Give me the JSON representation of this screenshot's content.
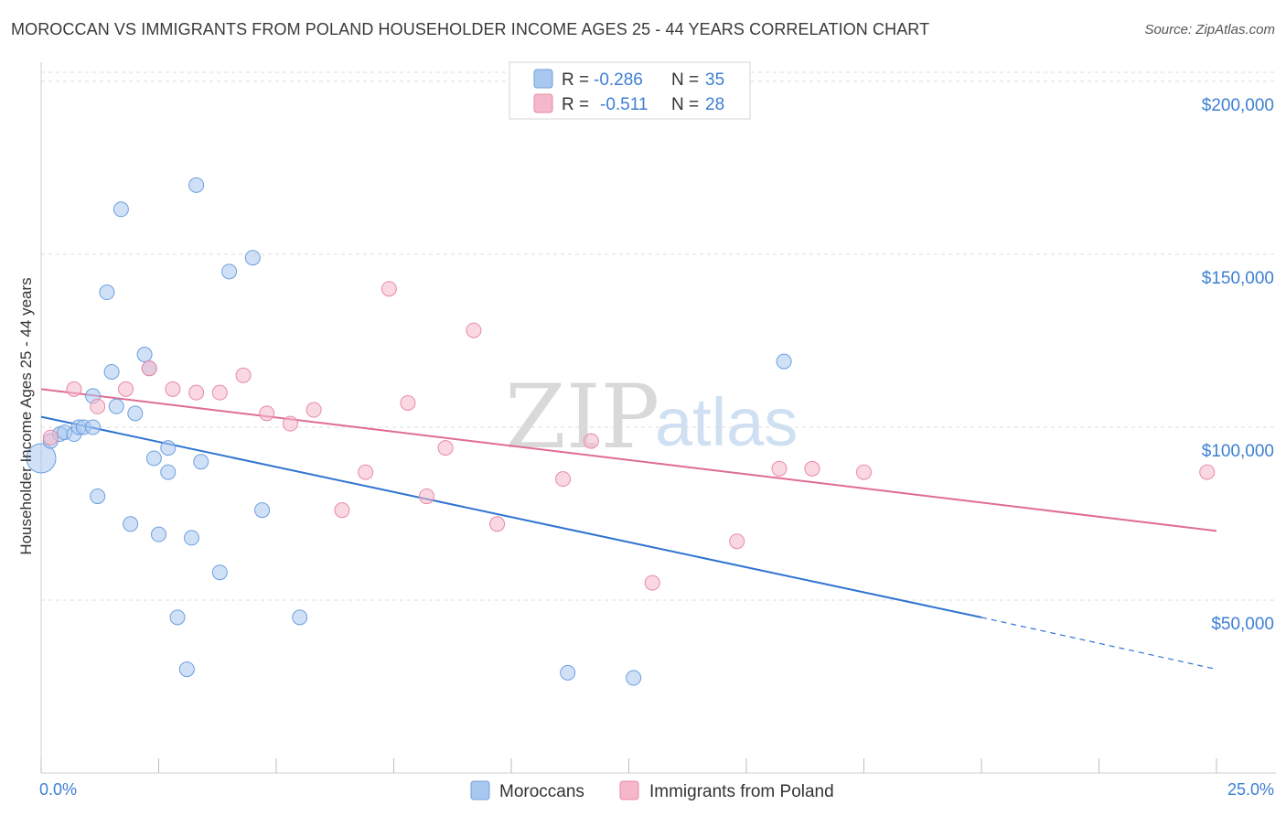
{
  "header": {
    "title": "MOROCCAN VS IMMIGRANTS FROM POLAND HOUSEHOLDER INCOME AGES 25 - 44 YEARS CORRELATION CHART",
    "source": "Source: ZipAtlas.com"
  },
  "watermark": {
    "zip": "ZIP",
    "atlas": "atlas"
  },
  "legend_top": {
    "rows": [
      {
        "r_label": "R =",
        "r_value": "-0.286",
        "n_label": "N =",
        "n_value": "35",
        "color": "#a9c8f0"
      },
      {
        "r_label": "R =",
        "r_value": "-0.511",
        "n_label": "N =",
        "n_value": "28",
        "color": "#f5b8cb"
      }
    ]
  },
  "legend_bottom": {
    "items": [
      {
        "label": "Moroccans",
        "color": "#a9c8f0"
      },
      {
        "label": "Immigrants from Poland",
        "color": "#f5b8cb"
      }
    ]
  },
  "chart_data": {
    "type": "scatter",
    "title": "MOROCCAN VS IMMIGRANTS FROM POLAND HOUSEHOLDER INCOME AGES 25 - 44 YEARS CORRELATION CHART",
    "xlabel": "",
    "ylabel": "Householder Income Ages 25 - 44 years",
    "xlim": [
      0,
      25
    ],
    "ylim": [
      0,
      205000
    ],
    "x_tick_labels": [
      "0.0%",
      "25.0%"
    ],
    "y_ticks": [
      50000,
      100000,
      150000,
      200000
    ],
    "y_tick_labels": [
      "$50,000",
      "$100,000",
      "$150,000",
      "$200,000"
    ],
    "grid": true,
    "series": [
      {
        "name": "Moroccans",
        "color": "#a9c8f0",
        "stroke": "#6d9fdf",
        "line_color": "#2f74d0",
        "trend": {
          "x_start": 0,
          "y_start": 103000,
          "x_solid_end": 20,
          "y_solid_end": 45000,
          "x_end": 25,
          "y_end": 30000
        },
        "points": [
          [
            0.0,
            91000
          ],
          [
            0.2,
            96000
          ],
          [
            0.4,
            98000
          ],
          [
            0.5,
            98500
          ],
          [
            0.7,
            98000
          ],
          [
            0.8,
            100000
          ],
          [
            0.9,
            100000
          ],
          [
            1.1,
            100000
          ],
          [
            1.1,
            109000
          ],
          [
            1.2,
            80000
          ],
          [
            1.4,
            139000
          ],
          [
            1.5,
            116000
          ],
          [
            1.6,
            106000
          ],
          [
            1.7,
            163000
          ],
          [
            1.9,
            72000
          ],
          [
            2.0,
            104000
          ],
          [
            2.2,
            121000
          ],
          [
            2.3,
            117000
          ],
          [
            2.4,
            91000
          ],
          [
            2.5,
            69000
          ],
          [
            2.7,
            94000
          ],
          [
            2.7,
            87000
          ],
          [
            2.9,
            45000
          ],
          [
            3.1,
            30000
          ],
          [
            3.2,
            68000
          ],
          [
            3.3,
            170000
          ],
          [
            3.4,
            90000
          ],
          [
            3.8,
            58000
          ],
          [
            4.0,
            145000
          ],
          [
            4.5,
            149000
          ],
          [
            4.7,
            76000
          ],
          [
            5.5,
            45000
          ],
          [
            11.2,
            29000
          ],
          [
            12.6,
            27500
          ],
          [
            15.8,
            119000
          ]
        ]
      },
      {
        "name": "Immigrants from Poland",
        "color": "#f5b8cb",
        "stroke": "#e88aa7",
        "line_color": "#e06c93",
        "trend": {
          "x_start": 0,
          "y_start": 111000,
          "x_solid_end": 25,
          "y_solid_end": 70000,
          "x_end": 25,
          "y_end": 70000
        },
        "points": [
          [
            0.2,
            97000
          ],
          [
            0.7,
            111000
          ],
          [
            1.2,
            106000
          ],
          [
            1.8,
            111000
          ],
          [
            2.3,
            117000
          ],
          [
            2.8,
            111000
          ],
          [
            3.3,
            110000
          ],
          [
            3.8,
            110000
          ],
          [
            4.3,
            115000
          ],
          [
            4.8,
            104000
          ],
          [
            5.3,
            101000
          ],
          [
            5.8,
            105000
          ],
          [
            6.4,
            76000
          ],
          [
            6.9,
            87000
          ],
          [
            7.4,
            140000
          ],
          [
            7.8,
            107000
          ],
          [
            8.2,
            80000
          ],
          [
            8.6,
            94000
          ],
          [
            9.2,
            128000
          ],
          [
            9.7,
            72000
          ],
          [
            11.1,
            85000
          ],
          [
            11.7,
            96000
          ],
          [
            13.0,
            55000
          ],
          [
            14.8,
            67000
          ],
          [
            15.7,
            88000
          ],
          [
            16.4,
            88000
          ],
          [
            17.5,
            87000
          ],
          [
            24.8,
            87000
          ]
        ]
      }
    ]
  }
}
